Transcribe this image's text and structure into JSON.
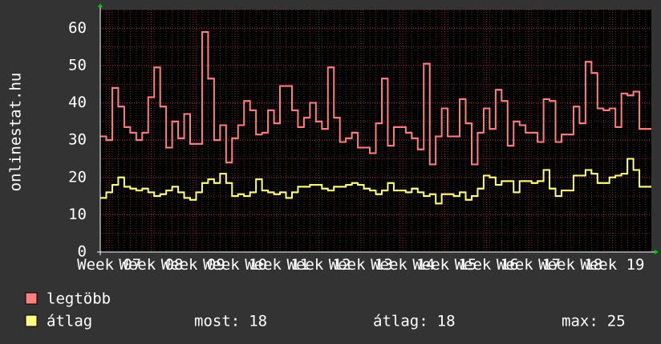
{
  "chart_data": {
    "type": "line",
    "y_label": "onlinestat.hu",
    "x": [
      0,
      1,
      2,
      3,
      4,
      5,
      6,
      7,
      8,
      9,
      10,
      11,
      12,
      13,
      14,
      15,
      16,
      17,
      18,
      19,
      20,
      21,
      22,
      23,
      24,
      25,
      26,
      27,
      28,
      29,
      30,
      31,
      32,
      33,
      34,
      35,
      36,
      37,
      38,
      39,
      40,
      41,
      42,
      43,
      44,
      45,
      46,
      47,
      48,
      49,
      50,
      51,
      52,
      53,
      54,
      55,
      56,
      57,
      58,
      59,
      60,
      61,
      62,
      63,
      64,
      65,
      66,
      67,
      68,
      69,
      70,
      71,
      72,
      73,
      74,
      75,
      76,
      77,
      78,
      79,
      80,
      81,
      82,
      83,
      84,
      85,
      86,
      87,
      88,
      89,
      90,
      91
    ],
    "xlim": [
      0,
      92
    ],
    "xticks": [
      {
        "value": 1.5,
        "label": "Week 07"
      },
      {
        "value": 8.5,
        "label": "Week 08"
      },
      {
        "value": 15.5,
        "label": "Week 09"
      },
      {
        "value": 22.5,
        "label": "Week 10"
      },
      {
        "value": 29.5,
        "label": "Week 11"
      },
      {
        "value": 36.5,
        "label": "Week 12"
      },
      {
        "value": 43.5,
        "label": "Week 13"
      },
      {
        "value": 50.5,
        "label": "Week 14"
      },
      {
        "value": 57.5,
        "label": "Week 15"
      },
      {
        "value": 64.5,
        "label": "Week 16"
      },
      {
        "value": 71.5,
        "label": "Week 17"
      },
      {
        "value": 78.5,
        "label": "Week 18"
      },
      {
        "value": 85.5,
        "label": "Week 19"
      }
    ],
    "ylim": [
      0,
      65
    ],
    "yticks": [
      0,
      10,
      20,
      30,
      40,
      50,
      60
    ],
    "grid": true,
    "step": true,
    "series": [
      {
        "name": "legtöbb",
        "color": "#ff7f7f",
        "values": [
          31,
          30,
          44,
          39,
          33.5,
          32,
          30,
          32,
          41.5,
          49.5,
          39,
          28,
          35,
          30.5,
          37,
          29,
          29,
          59,
          46.5,
          30,
          34,
          24,
          30.5,
          34,
          40.5,
          38,
          31.5,
          32,
          38,
          34.5,
          44.5,
          44.5,
          38,
          33.5,
          36,
          40,
          35,
          33,
          49.5,
          36,
          29.5,
          30.5,
          32,
          28,
          28,
          26.5,
          34.5,
          46.5,
          28.5,
          33.5,
          33.5,
          32,
          30.5,
          27.5,
          50.5,
          23.5,
          31,
          38.5,
          31,
          31,
          41,
          34.5,
          23.5,
          32,
          38.5,
          33,
          43.5,
          40.5,
          28.5,
          35,
          34,
          32,
          32,
          29.5,
          41,
          40.5,
          29.5,
          31.5,
          31.5,
          39,
          34.5,
          51,
          48,
          38.5,
          38,
          38.5,
          33.5,
          42.5,
          42,
          43,
          33,
          33
        ]
      },
      {
        "name": "átlag",
        "color": "#ffff80",
        "values": [
          14.5,
          16,
          18,
          20,
          17.5,
          17,
          16.5,
          17,
          16,
          15,
          15.5,
          16.5,
          17.5,
          16,
          14.5,
          14,
          16,
          18.5,
          19.5,
          18.5,
          21,
          18.5,
          15,
          15.5,
          15,
          16,
          19.5,
          16.5,
          16,
          15.5,
          16,
          14.5,
          16,
          17.5,
          17.5,
          18,
          18,
          17,
          16.5,
          17.5,
          17.5,
          18,
          18.5,
          18,
          17,
          16.5,
          15.5,
          16.5,
          18.5,
          16.5,
          16.5,
          16,
          17,
          16,
          15,
          15.5,
          13,
          15.5,
          15.5,
          15,
          16,
          14,
          15,
          17,
          20.5,
          20,
          18,
          19,
          19,
          16,
          19,
          19,
          18.5,
          19,
          22,
          17,
          15,
          16.5,
          16.5,
          20.5,
          20.5,
          22,
          21,
          18.5,
          18.5,
          20,
          20.5,
          21,
          25,
          22,
          17.5,
          17.5
        ]
      }
    ],
    "stats": [
      {
        "label": "most:",
        "value": 18
      },
      {
        "label": "átlag:",
        "value": 18
      },
      {
        "label": "max:",
        "value": 25
      }
    ]
  }
}
